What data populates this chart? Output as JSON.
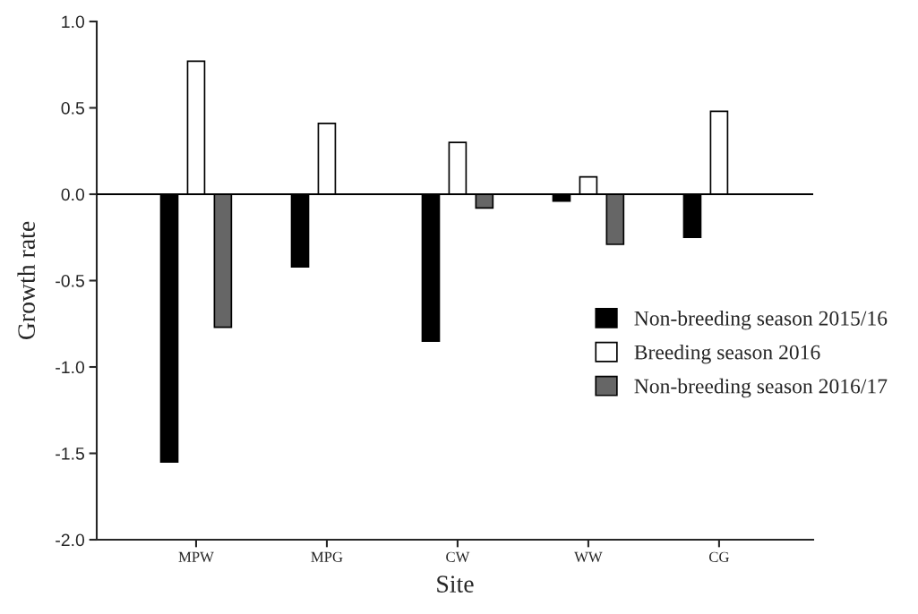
{
  "chart_data": {
    "type": "bar",
    "xlabel": "Site",
    "ylabel": "Growth rate",
    "categories": [
      "MPW",
      "MPG",
      "CW",
      "WW",
      "CG"
    ],
    "series": [
      {
        "name": "Non-breeding season 2015/16",
        "color": "#000000",
        "values": [
          -1.55,
          -0.42,
          -0.85,
          -0.04,
          -0.25
        ]
      },
      {
        "name": "Breeding season 2016",
        "color": "#ffffff",
        "values": [
          0.77,
          0.41,
          0.3,
          0.1,
          0.48
        ]
      },
      {
        "name": "Non-breeding season 2016/17",
        "color": "#666666",
        "values": [
          -0.77,
          null,
          -0.08,
          -0.29,
          null
        ]
      }
    ],
    "ylim": [
      -2.0,
      1.0
    ],
    "yticks": [
      {
        "value": -2.0,
        "label": "-2.0"
      },
      {
        "value": -1.5,
        "label": "-1.5"
      },
      {
        "value": -1.0,
        "label": "-1.0"
      },
      {
        "value": -0.5,
        "label": "-0.5"
      },
      {
        "value": 0.0,
        "label": "0.0"
      },
      {
        "value": 0.5,
        "label": "0.5"
      },
      {
        "value": 1.0,
        "label": "1.0"
      }
    ],
    "ref_lines": [
      {
        "axis": "y",
        "value": 0
      }
    ],
    "grid": false,
    "legend": "right"
  }
}
